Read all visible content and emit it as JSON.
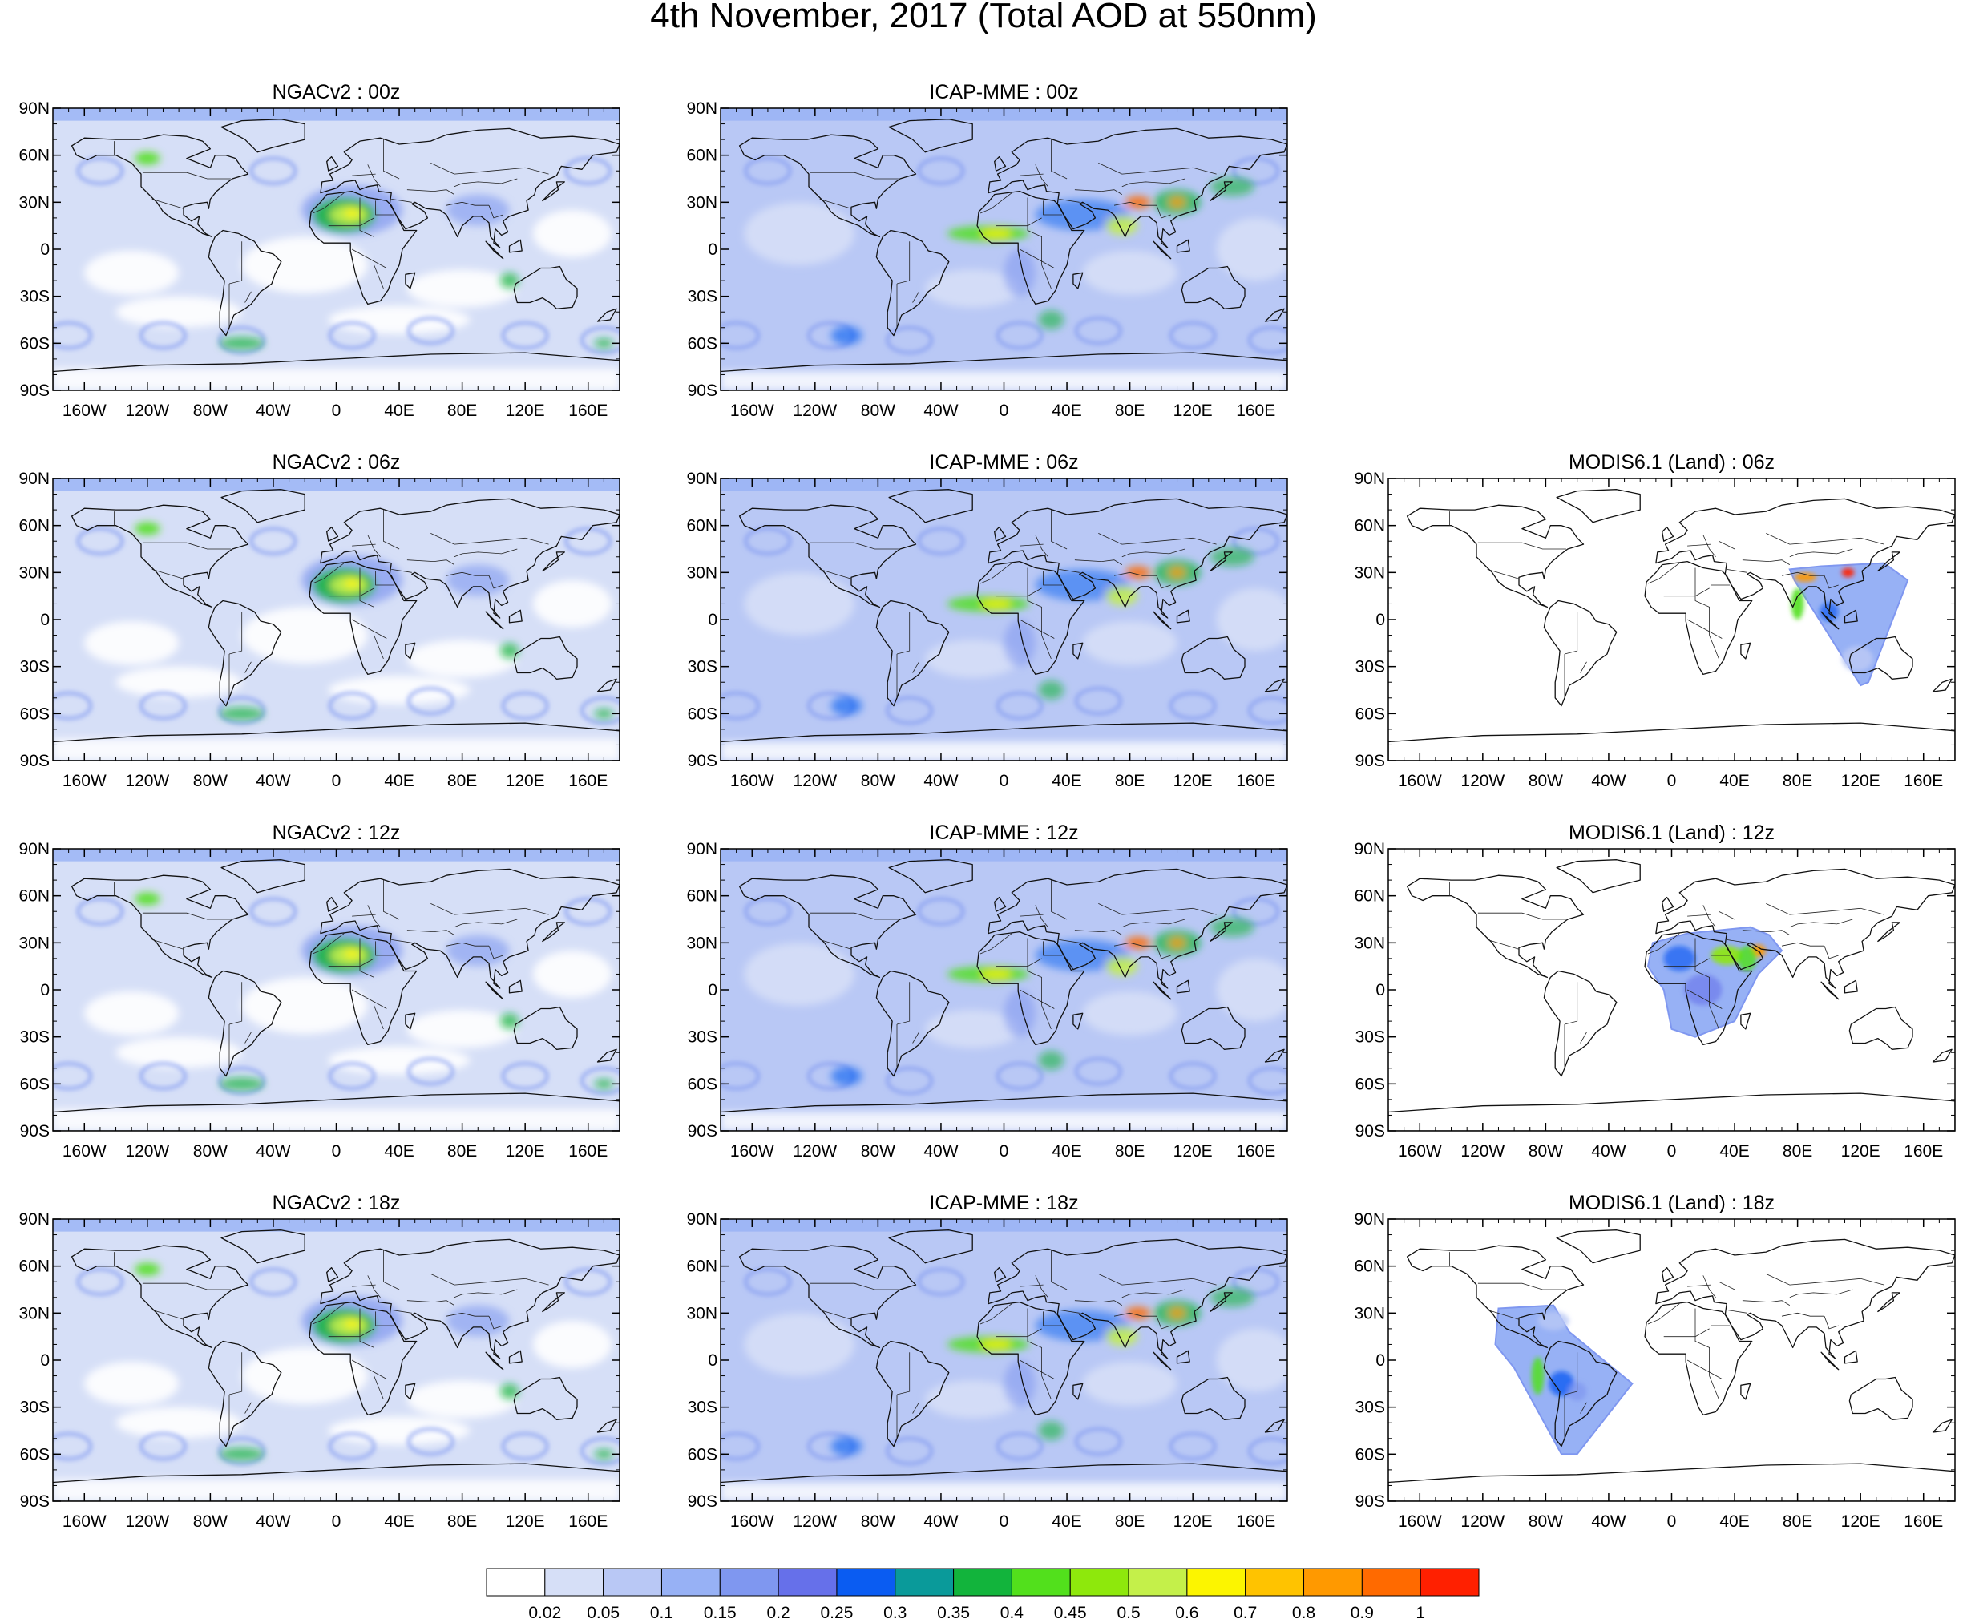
{
  "title": "4th November, 2017 (Total AOD at 550nm)",
  "axes": {
    "lon_ticks": [
      "160W",
      "120W",
      "80W",
      "40W",
      "0",
      "40E",
      "80E",
      "120E",
      "160E"
    ],
    "lon_values": [
      -160,
      -120,
      -80,
      -40,
      0,
      40,
      80,
      120,
      160
    ],
    "lat_ticks": [
      "90N",
      "60N",
      "30N",
      "0",
      "30S",
      "60S",
      "90S"
    ],
    "lat_values": [
      90,
      60,
      30,
      0,
      -30,
      -60,
      -90
    ],
    "lon_range": [
      -180,
      180
    ],
    "lat_range": [
      -90,
      90
    ]
  },
  "colorbar": {
    "labels": [
      "0.02",
      "0.05",
      "0.1",
      "0.15",
      "0.2",
      "0.25",
      "0.3",
      "0.35",
      "0.4",
      "0.45",
      "0.5",
      "0.6",
      "0.7",
      "0.8",
      "0.9",
      "1"
    ],
    "colors": [
      "#ffffff",
      "#d6dff7",
      "#b9c8f5",
      "#97b1f5",
      "#7f97f0",
      "#6670ea",
      "#0a5cf2",
      "#0a9a9a",
      "#12b43c",
      "#52e01c",
      "#8ee80c",
      "#c4f04a",
      "#fcf500",
      "#ffc300",
      "#ff9900",
      "#ff6a00",
      "#ff2000"
    ]
  },
  "panels": [
    {
      "title": "NGACv2 : 00z",
      "row": 0,
      "col": 0,
      "style": "model"
    },
    {
      "title": "ICAP-MME : 00z",
      "row": 0,
      "col": 1,
      "style": "model"
    },
    {
      "title": "NGACv2 : 06z",
      "row": 1,
      "col": 0,
      "style": "model"
    },
    {
      "title": "ICAP-MME : 06z",
      "row": 1,
      "col": 1,
      "style": "model"
    },
    {
      "title": "MODIS6.1 (Land) : 06z",
      "row": 1,
      "col": 2,
      "style": "obs",
      "swath": "asia"
    },
    {
      "title": "NGACv2 : 12z",
      "row": 2,
      "col": 0,
      "style": "model"
    },
    {
      "title": "ICAP-MME : 12z",
      "row": 2,
      "col": 1,
      "style": "model"
    },
    {
      "title": "MODIS6.1 (Land) : 12z",
      "row": 2,
      "col": 2,
      "style": "obs",
      "swath": "africa"
    },
    {
      "title": "NGACv2 : 18z",
      "row": 3,
      "col": 0,
      "style": "model"
    },
    {
      "title": "ICAP-MME : 18z",
      "row": 3,
      "col": 1,
      "style": "model"
    },
    {
      "title": "MODIS6.1 (Land) : 18z",
      "row": 3,
      "col": 2,
      "style": "obs",
      "swath": "samerica"
    }
  ]
}
